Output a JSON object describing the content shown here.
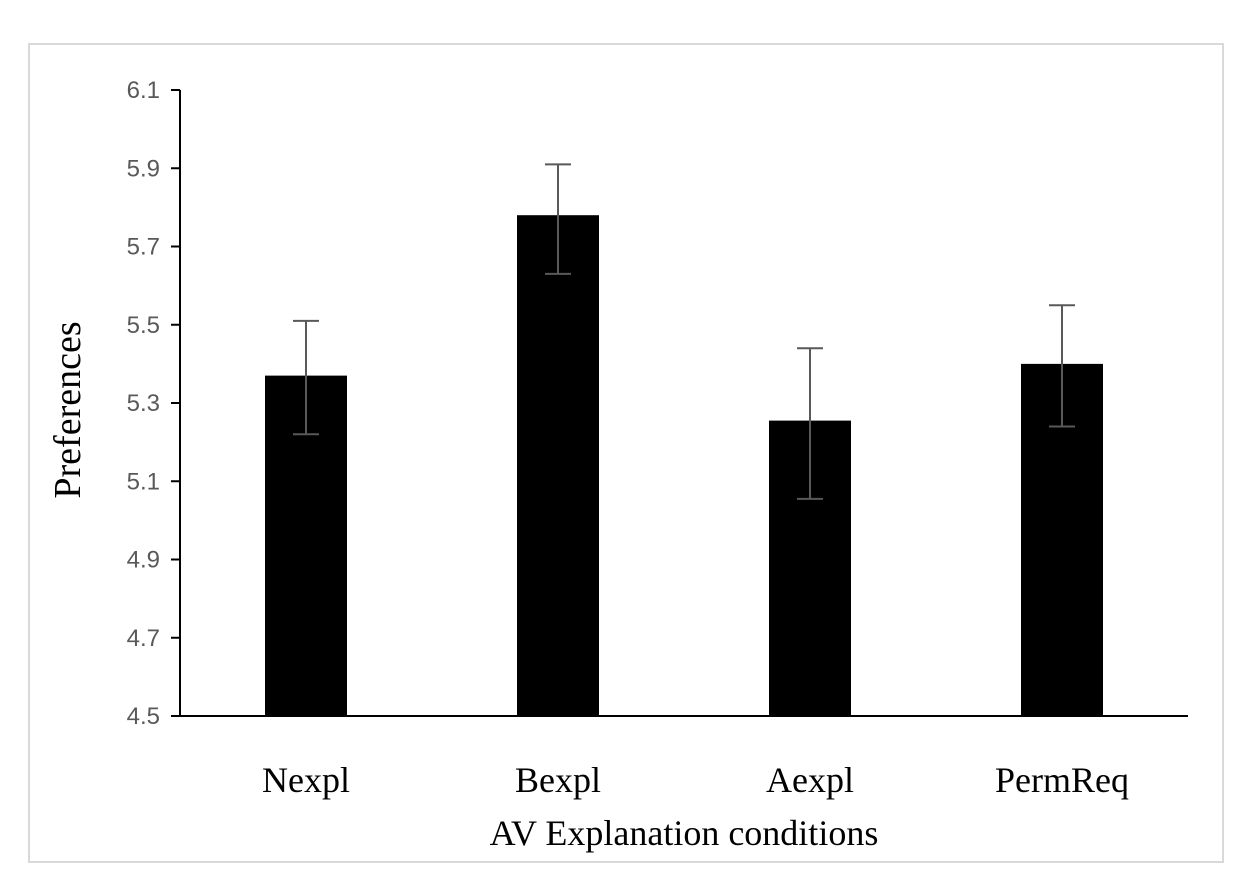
{
  "chart_data": {
    "type": "bar",
    "title": "",
    "xlabel": "AV Explanation conditions",
    "ylabel": "Preferences",
    "categories": [
      "Nexpl",
      "Bexpl",
      "Aexpl",
      "PermReq"
    ],
    "values": [
      5.37,
      5.78,
      5.255,
      5.4
    ],
    "error_upper": [
      5.51,
      5.91,
      5.44,
      5.55
    ],
    "error_lower": [
      5.22,
      5.63,
      5.055,
      5.24
    ],
    "ylim": [
      4.5,
      6.1
    ],
    "yticks": [
      "4.5",
      "4.7",
      "4.9",
      "5.1",
      "5.3",
      "5.5",
      "5.7",
      "5.9",
      "6.1"
    ],
    "grid": false,
    "legend": "none",
    "bar_color": "#000000"
  }
}
